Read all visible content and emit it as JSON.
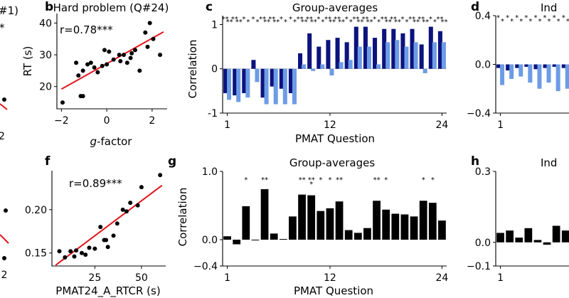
{
  "chart_data": [
    {
      "id": "a",
      "type": "scatter",
      "partial_texts": [
        "#1)",
        "*",
        "2"
      ],
      "regression_color": "#e3141b"
    },
    {
      "id": "b",
      "type": "scatter",
      "panel_letter": "b",
      "title": "Hard problem (Q#24)",
      "annotation": "r=0.78***",
      "xlabel_italic": "g",
      "xlabel_rest": "-factor",
      "ylabel": "RT (s)",
      "xticks": [
        -2,
        0,
        2
      ],
      "xtick_labels": [
        "−2",
        "0",
        "2"
      ],
      "yticks": [
        20,
        30,
        40
      ],
      "xlim": [
        -2.2,
        2.6
      ],
      "ylim": [
        13,
        43
      ],
      "points": [
        [
          -1.95,
          15
        ],
        [
          -1.15,
          17
        ],
        [
          -1.05,
          17
        ],
        [
          -1.25,
          23.5
        ],
        [
          -1.35,
          27.5
        ],
        [
          -1.05,
          25
        ],
        [
          -0.85,
          27
        ],
        [
          -0.7,
          27.5
        ],
        [
          -0.55,
          26
        ],
        [
          -0.4,
          24.5
        ],
        [
          -0.2,
          26.5
        ],
        [
          -0.1,
          31.5
        ],
        [
          0.1,
          31
        ],
        [
          0.0,
          27
        ],
        [
          0.3,
          28.5
        ],
        [
          0.55,
          30
        ],
        [
          0.6,
          28
        ],
        [
          0.75,
          30
        ],
        [
          0.9,
          27.5
        ],
        [
          1.05,
          29
        ],
        [
          1.1,
          30.5
        ],
        [
          1.25,
          31.5
        ],
        [
          1.45,
          25
        ],
        [
          1.7,
          37
        ],
        [
          1.8,
          32.5
        ],
        [
          1.9,
          40
        ],
        [
          2.05,
          35
        ],
        [
          2.35,
          30
        ]
      ],
      "regression": {
        "x": [
          -2.0,
          2.5
        ],
        "y": [
          19.2,
          37.2
        ]
      },
      "point_color": "#000000",
      "line_color": "#e3141b"
    },
    {
      "id": "c",
      "type": "bar",
      "panel_letter": "c",
      "title": "Group-averages",
      "xlabel": "PMAT Question",
      "ylabel": "Correlation",
      "xticks": [
        1,
        12,
        24
      ],
      "yticks": [
        -1,
        0,
        1
      ],
      "ylim": [
        -1,
        1.2
      ],
      "series": [
        {
          "name": "dark",
          "color": "#0c137d",
          "values": [
            -0.55,
            -0.6,
            -0.55,
            0.2,
            -0.65,
            -0.4,
            -0.45,
            -0.55,
            0.35,
            0.8,
            0.5,
            0.65,
            0.7,
            0.6,
            0.95,
            0.95,
            0.7,
            0.9,
            0.9,
            0.8,
            0.9,
            0.55,
            0.95,
            0.85
          ]
        },
        {
          "name": "light",
          "color": "#6d9ce6",
          "values": [
            -0.7,
            -0.75,
            -0.65,
            -0.3,
            -0.8,
            -0.8,
            -0.8,
            -0.8,
            0.1,
            -0.05,
            0.1,
            -0.15,
            0.15,
            0.2,
            0.5,
            0.5,
            0.1,
            0.6,
            0.65,
            0.5,
            0.6,
            -0.1,
            0.6,
            0.6
          ]
        }
      ],
      "star_rows": [
        "**",
        "**",
        "*",
        "*",
        "**",
        "**",
        "*",
        "*",
        "**",
        "**",
        "*",
        "**",
        "**",
        "*",
        "**",
        "**",
        "*",
        "**",
        "**",
        "*",
        "**",
        "**",
        "*",
        "**"
      ]
    },
    {
      "id": "d",
      "type": "bar",
      "panel_letter": "d",
      "title_partial": "Ind",
      "xticks": [
        1
      ],
      "yticks": [
        -0.4,
        0.0,
        0.4
      ],
      "ytick_labels": [
        "−0.4",
        "0.0",
        "0.4"
      ],
      "ylim": [
        -0.4,
        0.4
      ],
      "series": [
        {
          "name": "dark",
          "color": "#0c137d",
          "values": [
            -0.03,
            -0.05,
            -0.03,
            -0.02,
            -0.04,
            -0.03,
            -0.02,
            -0.03,
            -0.02,
            -0.03,
            -0.02,
            -0.03
          ]
        },
        {
          "name": "light",
          "color": "#6d9ce6",
          "values": [
            -0.17,
            -0.12,
            -0.1,
            -0.15,
            -0.2,
            -0.15,
            -0.22,
            -0.2,
            -0.12,
            -0.1,
            -0.12,
            -0.05
          ]
        }
      ]
    },
    {
      "id": "e",
      "type": "scatter",
      "partial_texts": [
        "2"
      ],
      "regression_color": "#e3141b"
    },
    {
      "id": "f",
      "type": "scatter",
      "panel_letter": "f",
      "annotation": "r=0.89***",
      "xlabel": "PMAT24_A_RTCR (s)",
      "xticks": [
        25,
        50
      ],
      "yticks": [
        0.15,
        0.2
      ],
      "ytick_labels": [
        "0.15",
        "0.20"
      ],
      "xlim": [
        2,
        63
      ],
      "ylim": [
        0.135,
        0.245
      ],
      "points": [
        [
          6,
          0.152
        ],
        [
          9,
          0.145
        ],
        [
          12,
          0.152
        ],
        [
          15,
          0.153
        ],
        [
          18,
          0.15
        ],
        [
          20,
          0.148
        ],
        [
          22,
          0.156
        ],
        [
          25,
          0.155
        ],
        [
          28,
          0.18
        ],
        [
          30,
          0.165
        ],
        [
          32,
          0.157
        ],
        [
          35,
          0.17
        ],
        [
          37,
          0.184
        ],
        [
          40,
          0.2
        ],
        [
          42,
          0.198
        ],
        [
          44,
          0.208
        ],
        [
          48,
          0.205
        ],
        [
          50,
          0.226
        ],
        [
          60,
          0.24
        ],
        [
          14,
          0.146
        ],
        [
          31,
          0.165
        ]
      ],
      "regression": {
        "x": [
          4,
          61
        ],
        "y": [
          0.136,
          0.228
        ]
      },
      "point_color": "#000000",
      "line_color": "#e3141b"
    },
    {
      "id": "g",
      "type": "bar",
      "panel_letter": "g",
      "title": "Group-averages",
      "xlabel": "PMAT Question",
      "ylabel": "Correlation",
      "xticks": [
        1,
        12,
        24
      ],
      "yticks": [
        -0.4,
        0.0,
        1.0
      ],
      "ytick_labels": [
        "−0.4",
        "0.0",
        "1.0"
      ],
      "ylim": [
        -0.4,
        1.0
      ],
      "series": [
        {
          "name": "black",
          "color": "#000000",
          "values": [
            0.05,
            -0.07,
            0.49,
            -0.01,
            0.74,
            0.09,
            0.01,
            0.34,
            0.66,
            0.65,
            0.42,
            0.46,
            0.56,
            0.14,
            0.1,
            0.17,
            0.57,
            0.44,
            0.38,
            0.37,
            0.34,
            0.57,
            0.54,
            0.28
          ]
        }
      ],
      "stars": [
        "",
        "",
        "*",
        "",
        "**",
        "",
        "",
        "",
        "**",
        "***",
        "*",
        "*",
        "**",
        "",
        "",
        "",
        "**",
        "*",
        "",
        "",
        "",
        "*",
        "*",
        ""
      ]
    },
    {
      "id": "h",
      "type": "bar",
      "panel_letter": "h",
      "title_partial": "Ind",
      "xticks": [
        1
      ],
      "yticks": [
        -0.1,
        0.0,
        0.3
      ],
      "ytick_labels": [
        "−0.1",
        "0.0",
        "0.3"
      ],
      "ylim": [
        -0.1,
        0.3
      ],
      "series": [
        {
          "name": "black",
          "color": "#000000",
          "values": [
            0.04,
            0.05,
            0.02,
            0.06,
            0.01,
            -0.01,
            0.07,
            0.05
          ]
        }
      ]
    }
  ]
}
